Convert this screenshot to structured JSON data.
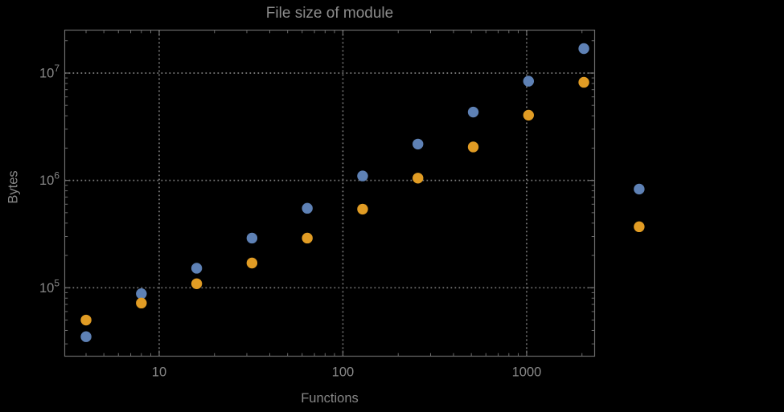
{
  "title": "File size of module",
  "chart_data": {
    "type": "scatter",
    "title": "File size of module",
    "xlabel": "Functions",
    "ylabel": "Bytes",
    "x_scale": "log",
    "y_scale": "log",
    "legend": "none",
    "grid": {
      "style": "dotted",
      "x_at": [
        10,
        100,
        1000
      ],
      "y_at": [
        100000,
        1000000,
        10000000
      ]
    },
    "x": [
      4,
      8,
      16,
      32,
      64,
      128,
      256,
      512,
      1024,
      2048,
      4096
    ],
    "series": [
      {
        "name": "series-blue",
        "color": "#5E81B5",
        "values": [
          35000,
          88000,
          152000,
          290000,
          550000,
          1100000,
          2180000,
          4330000,
          8400000,
          16900000,
          830000
        ]
      },
      {
        "name": "series-orange",
        "color": "#E19C24",
        "values": [
          50000,
          72000,
          109000,
          170000,
          290000,
          540000,
          1050000,
          2050000,
          4050000,
          8200000,
          370000
        ]
      }
    ],
    "x_tick_values": [
      10,
      100,
      1000
    ],
    "x_tick_labels": [
      "10",
      "100",
      "1000"
    ],
    "y_tick_values": [
      100000,
      1000000,
      10000000
    ],
    "y_tick_base": "10",
    "y_tick_exponents": [
      "5",
      "6",
      "7"
    ],
    "xlim_log10": [
      0.486,
      3.37
    ],
    "ylim_log10": [
      4.3625,
      7.4
    ],
    "marker_radius_px": 6.7,
    "colors": {
      "series1": "#5E81B5",
      "series2": "#E19C24",
      "text": "#878787",
      "frame": "#6b6b6b",
      "grid": "#7d7d7d",
      "background": "#000000"
    }
  }
}
